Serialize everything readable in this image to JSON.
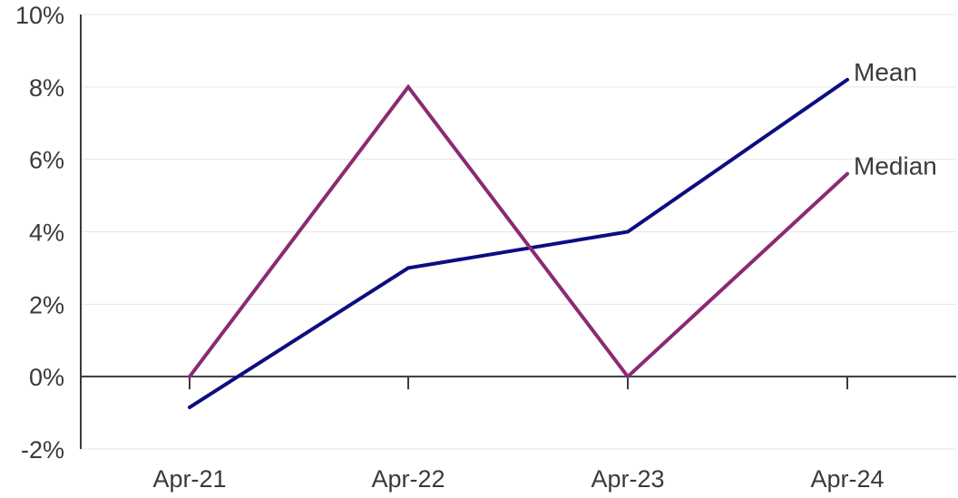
{
  "chart_data": {
    "type": "line",
    "title": "",
    "xlabel": "",
    "ylabel": "",
    "categories": [
      "Apr-21",
      "Apr-22",
      "Apr-23",
      "Apr-24"
    ],
    "series": [
      {
        "name": "Mean",
        "values": [
          -0.85,
          3.0,
          4.0,
          8.2
        ],
        "color": "#0d0d82"
      },
      {
        "name": "Median",
        "values": [
          0.0,
          8.0,
          0.0,
          5.6
        ],
        "color": "#8b2a73"
      }
    ],
    "ylim": [
      -2,
      10
    ],
    "yticks": [
      -2,
      0,
      2,
      4,
      6,
      8,
      10
    ],
    "ytick_labels": [
      "-2%",
      "0%",
      "2%",
      "4%",
      "6%",
      "8%",
      "10%"
    ],
    "grid": true,
    "legend": "inline labels at line ends",
    "colors": {
      "grid": "#e6e6e6",
      "axis": "#3a3a3a",
      "text": "#3a3a3a"
    }
  }
}
